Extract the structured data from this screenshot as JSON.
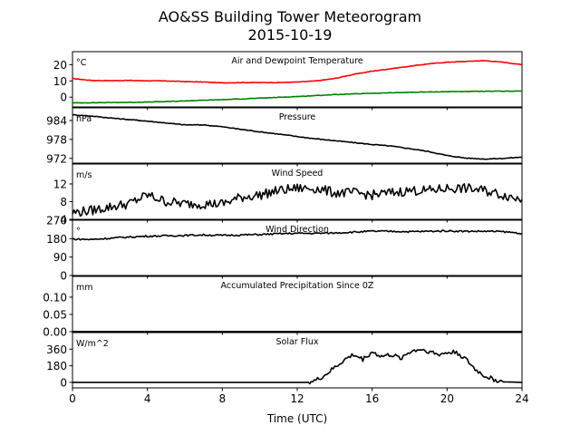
{
  "title": "AO&SS Building Tower Meteorogram",
  "subtitle": "2015-10-19",
  "xlabel": "Time (UTC)",
  "chart_data": [
    {
      "type": "line",
      "title": "Air and Dewpoint Temperature",
      "unit": "°C",
      "ylim": [
        -6,
        28
      ],
      "yticks": [
        0,
        10,
        20
      ],
      "x_ticks": [
        0,
        4,
        8,
        12,
        16,
        20,
        24
      ],
      "series": [
        {
          "color": "#ff0000",
          "x": [
            0,
            1,
            2,
            3,
            4,
            5,
            6,
            7,
            8,
            9,
            10,
            11,
            12,
            13,
            14,
            15,
            16,
            17,
            18,
            19,
            20,
            21,
            22,
            23,
            24
          ],
          "values": [
            11.5,
            10.3,
            10.2,
            10.3,
            10.1,
            10.0,
            9.6,
            9.3,
            8.8,
            9.0,
            9.0,
            9.0,
            9.3,
            10.0,
            11.5,
            14.0,
            16.0,
            17.5,
            19.0,
            20.5,
            21.5,
            22.0,
            22.5,
            21.5,
            20.0
          ]
        },
        {
          "color": "#008000",
          "x": [
            0,
            1,
            2,
            3,
            4,
            5,
            6,
            7,
            8,
            9,
            10,
            11,
            12,
            13,
            14,
            15,
            16,
            17,
            18,
            19,
            20,
            21,
            22,
            23,
            24
          ],
          "values": [
            -3.5,
            -3.4,
            -3.3,
            -3.2,
            -3.0,
            -2.7,
            -2.3,
            -1.9,
            -1.5,
            -1.1,
            -0.6,
            -0.1,
            0.4,
            1.0,
            1.6,
            2.0,
            2.4,
            2.7,
            3.0,
            3.2,
            3.4,
            3.5,
            3.6,
            3.7,
            3.8
          ]
        }
      ]
    },
    {
      "type": "line",
      "title": "Pressure",
      "unit": "hPa",
      "ylim": [
        970.5,
        988
      ],
      "yticks": [
        972,
        978,
        984
      ],
      "x_ticks": [
        0,
        4,
        8,
        12,
        16,
        20,
        24
      ],
      "series": [
        {
          "color": "#000000",
          "x": [
            0,
            1,
            2,
            3,
            4,
            5,
            6,
            7,
            8,
            9,
            10,
            11,
            12,
            13,
            14,
            15,
            16,
            17,
            18,
            19,
            20,
            21,
            22,
            23,
            24
          ],
          "values": [
            985.8,
            985.4,
            984.8,
            984.3,
            983.8,
            983.2,
            982.6,
            982.6,
            982.0,
            981.2,
            980.4,
            979.7,
            978.9,
            978.2,
            977.6,
            977.0,
            976.4,
            975.9,
            975.1,
            974.2,
            972.9,
            972.1,
            971.8,
            972.0,
            972.4
          ]
        }
      ]
    },
    {
      "type": "line",
      "title": "Wind Speed",
      "unit": "m/s",
      "ylim": [
        4,
        16.5
      ],
      "yticks": [
        4,
        8,
        12
      ],
      "x_ticks": [
        0,
        4,
        8,
        12,
        16,
        20,
        24
      ],
      "series": [
        {
          "color": "#000000",
          "x": [
            0,
            1,
            2,
            3,
            4,
            5,
            6,
            7,
            8,
            9,
            10,
            11,
            12,
            13,
            14,
            15,
            16,
            17,
            18,
            19,
            20,
            21,
            22,
            23,
            24
          ],
          "values": [
            5.5,
            6.0,
            6.8,
            7.5,
            9.5,
            8.0,
            7.5,
            7.5,
            7.5,
            9.0,
            9.5,
            10.5,
            11.0,
            11.0,
            10.0,
            10.0,
            9.5,
            10.0,
            10.5,
            10.5,
            11.0,
            11.0,
            10.5,
            9.5,
            8.5
          ]
        }
      ]
    },
    {
      "type": "line",
      "title": "Wind Direction",
      "unit": "°",
      "ylim": [
        0,
        270
      ],
      "yticks": [
        0,
        90,
        180,
        270
      ],
      "x_ticks": [
        0,
        4,
        8,
        12,
        16,
        20,
        24
      ],
      "series": [
        {
          "color": "#000000",
          "x": [
            0,
            1,
            2,
            3,
            4,
            5,
            6,
            7,
            8,
            9,
            10,
            11,
            12,
            13,
            14,
            15,
            16,
            17,
            18,
            19,
            20,
            21,
            22,
            23,
            24
          ],
          "values": [
            178,
            176,
            182,
            188,
            192,
            194,
            196,
            198,
            196,
            198,
            200,
            204,
            206,
            206,
            208,
            212,
            216,
            216,
            214,
            216,
            218,
            216,
            216,
            214,
            206
          ]
        }
      ]
    },
    {
      "type": "line",
      "title": "Accumulated Precipitation Since 0Z",
      "unit": "mm",
      "ylim": [
        0,
        0.16
      ],
      "yticks": [
        0.0,
        0.05,
        0.1
      ],
      "ytick_labels": [
        "0.00",
        "0.05",
        "0.10"
      ],
      "x_ticks": [
        0,
        4,
        8,
        12,
        16,
        20,
        24
      ],
      "series": [
        {
          "color": "#000000",
          "x": [
            0,
            24
          ],
          "values": [
            0,
            0
          ]
        }
      ]
    },
    {
      "type": "line",
      "title": "Solar Flux",
      "unit": "W/m^2",
      "ylim": [
        -60,
        540
      ],
      "yticks": [
        0,
        180,
        360
      ],
      "x_ticks": [
        0,
        4,
        8,
        12,
        16,
        20,
        24
      ],
      "series": [
        {
          "color": "#000000",
          "x": [
            0,
            12.5,
            13.0,
            13.5,
            14.0,
            14.5,
            15.0,
            15.5,
            16.0,
            16.5,
            17.0,
            17.5,
            18.0,
            18.5,
            19.0,
            19.5,
            20.0,
            20.5,
            21.0,
            21.5,
            22.0,
            22.5,
            23.0,
            24.0
          ],
          "values": [
            0,
            0,
            20,
            80,
            160,
            240,
            300,
            250,
            330,
            280,
            300,
            260,
            330,
            360,
            340,
            300,
            320,
            330,
            250,
            140,
            70,
            30,
            5,
            0
          ]
        }
      ]
    }
  ]
}
